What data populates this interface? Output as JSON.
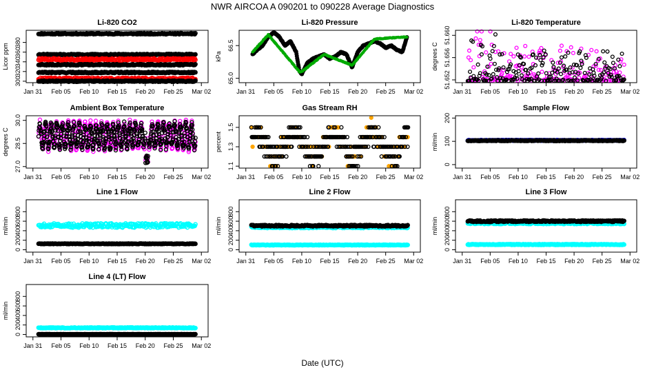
{
  "title": "NWR   AIRCOA A   090201 to 090228   Average Diagnostics",
  "xlabel": "Date (UTC)",
  "x_ticks": [
    "Jan 31",
    "Feb 05",
    "Feb 10",
    "Feb 15",
    "Feb 20",
    "Feb 25",
    "Mar 02"
  ],
  "x_tick_days": [
    0,
    5,
    10,
    15,
    20,
    25,
    30
  ],
  "data_day_range": [
    1,
    29
  ],
  "colors": {
    "black": "#000000",
    "red": "#ff0000",
    "magenta": "#ff00ff",
    "cyan": "#00ffff",
    "orange": "#ffa500",
    "green": "#00aa00",
    "blue": "#0000ff"
  },
  "chart_data": [
    {
      "id": "li820-co2",
      "type": "scatter",
      "title": "Li-820 CO2",
      "ylabel": "Licor ppm",
      "ylim": [
        297,
        405
      ],
      "yticks": [
        "300",
        "320",
        "340",
        "360",
        "380"
      ],
      "ytick_values": [
        300,
        320,
        340,
        360,
        380
      ],
      "series": [
        {
          "name": "level-398",
          "color": "black",
          "kind": "flat",
          "level": 398,
          "noise": 1.2
        },
        {
          "name": "level-355",
          "color": "black",
          "kind": "flat",
          "level": 355,
          "noise": 1.2
        },
        {
          "name": "level-345",
          "color": "red",
          "kind": "flat",
          "level": 345,
          "noise": 2.2
        },
        {
          "name": "level-334",
          "color": "black",
          "kind": "flat",
          "level": 334,
          "noise": 1.2
        },
        {
          "name": "level-318",
          "color": "black",
          "kind": "flat",
          "level": 318,
          "noise": 1.2
        },
        {
          "name": "level-305",
          "color": "red",
          "kind": "flat",
          "level": 305,
          "noise": 2.2
        },
        {
          "name": "level-300",
          "color": "black",
          "kind": "flat",
          "level": 300,
          "noise": 1.2
        }
      ]
    },
    {
      "id": "li820-pressure",
      "type": "line",
      "title": "Li-820 Pressure",
      "ylabel": "kPa",
      "ylim": [
        64.8,
        67.2
      ],
      "yticks": [
        "65.0",
        "66.5"
      ],
      "ytick_values": [
        65.0,
        66.5
      ],
      "series": [
        {
          "name": "pressure",
          "color": "black",
          "kind": "profile",
          "x": [
            1.2,
            2,
            3,
            4,
            5,
            6,
            7,
            8,
            9,
            9.6,
            10,
            11,
            12,
            13,
            14,
            15,
            16,
            17,
            18,
            19,
            20,
            21,
            22,
            23,
            24,
            25,
            26,
            27,
            28,
            28.8
          ],
          "y": [
            66.1,
            66.3,
            66.5,
            66.9,
            67.1,
            66.9,
            66.5,
            66.7,
            66.2,
            65.3,
            65.2,
            65.7,
            65.9,
            66.0,
            66.1,
            65.9,
            66.0,
            66.2,
            66.1,
            65.5,
            66.2,
            66.5,
            66.6,
            66.7,
            66.6,
            66.4,
            66.5,
            66.3,
            66.2,
            66.9
          ]
        },
        {
          "name": "pressure-hi",
          "color": "green",
          "kind": "profile",
          "x": [
            1.2,
            4,
            9.6,
            10,
            14,
            19,
            23,
            28.8
          ],
          "y": [
            66.2,
            67.0,
            65.3,
            65.3,
            66.1,
            65.6,
            66.8,
            66.9
          ]
        }
      ]
    },
    {
      "id": "li820-temperature",
      "type": "scatter",
      "title": "Li-820 Temperature",
      "ylabel": "degrees C",
      "ylim": [
        51.6515,
        51.6609
      ],
      "yticks": [
        "51.652",
        "51.656",
        "51.660"
      ],
      "ytick_values": [
        51.652,
        51.656,
        51.66
      ],
      "series": [
        {
          "name": "temperature-magenta",
          "color": "magenta",
          "kind": "spiky",
          "base": 51.6518,
          "spread": 0.0075
        },
        {
          "name": "temperature-black",
          "color": "black",
          "kind": "spiky",
          "base": 51.6518,
          "spread": 0.0065
        }
      ]
    },
    {
      "id": "ambient-box-temperature",
      "type": "scatter",
      "title": "Ambient Box Temperature",
      "ylabel": "degrees C",
      "ylim": [
        26.9,
        30.3
      ],
      "yticks": [
        "27.0",
        "28.5",
        "30.0"
      ],
      "ytick_values": [
        27.0,
        28.5,
        30.0
      ],
      "series": [
        {
          "name": "box-temp-magenta",
          "color": "magenta",
          "kind": "cyclic",
          "level": 29.0,
          "amp": 0.8
        },
        {
          "name": "box-temp-black",
          "color": "black",
          "kind": "cyclic",
          "level": 29.0,
          "amp": 0.7
        }
      ]
    },
    {
      "id": "gas-stream-rh",
      "type": "scatter",
      "title": "Gas Stream RH",
      "ylabel": "percent",
      "ylim": [
        1.08,
        1.62
      ],
      "yticks": [
        "1.1",
        "1.3",
        "1.5"
      ],
      "ytick_values": [
        1.1,
        1.3,
        1.5
      ],
      "series": [
        {
          "name": "rh-orange",
          "color": "orange",
          "kind": "quantized",
          "levels": [
            1.1,
            1.2,
            1.3,
            1.4,
            1.5,
            1.6
          ]
        },
        {
          "name": "rh-black",
          "color": "black",
          "kind": "quantized",
          "levels": [
            1.1,
            1.2,
            1.3,
            1.4,
            1.5,
            1.6
          ]
        }
      ]
    },
    {
      "id": "sample-flow",
      "type": "scatter",
      "title": "Sample Flow",
      "ylabel": "ml/min",
      "ylim": [
        -15,
        210
      ],
      "yticks": [
        "0",
        "100",
        "200"
      ],
      "ytick_values": [
        0,
        100,
        200
      ],
      "series": [
        {
          "name": "sample-blue",
          "color": "blue",
          "kind": "flat",
          "level": 104,
          "noise": 1.5
        },
        {
          "name": "sample-black",
          "color": "black",
          "kind": "flat",
          "level": 103,
          "noise": 1.5
        }
      ]
    },
    {
      "id": "line-1-flow",
      "type": "scatter",
      "title": "Line 1 Flow",
      "ylabel": "ml/min",
      "ylim": [
        -50,
        1050
      ],
      "yticks": [
        "0",
        "200",
        "400",
        "600",
        "800"
      ],
      "ytick_values": [
        0,
        200,
        400,
        600,
        800
      ],
      "series": [
        {
          "name": "line1-cyan",
          "color": "cyan",
          "kind": "flat",
          "level": 510,
          "noise": 45
        },
        {
          "name": "line1-black",
          "color": "black",
          "kind": "flat",
          "level": 125,
          "noise": 6
        }
      ]
    },
    {
      "id": "line-2-flow",
      "type": "scatter",
      "title": "Line 2 Flow",
      "ylabel": "ml/min",
      "ylim": [
        -50,
        1050
      ],
      "yticks": [
        "0",
        "200",
        "400",
        "600",
        "800"
      ],
      "ytick_values": [
        0,
        200,
        400,
        600,
        800
      ],
      "series": [
        {
          "name": "line2-cyan-low",
          "color": "cyan",
          "kind": "flat",
          "level": 100,
          "noise": 6
        },
        {
          "name": "line2-cyan-high",
          "color": "cyan",
          "kind": "flat",
          "level": 470,
          "noise": 15
        },
        {
          "name": "line2-black",
          "color": "black",
          "kind": "flat",
          "level": 505,
          "noise": 15
        }
      ]
    },
    {
      "id": "line-3-flow",
      "type": "scatter",
      "title": "Line 3 Flow",
      "ylabel": "ml/min",
      "ylim": [
        -50,
        1050
      ],
      "yticks": [
        "0",
        "200",
        "400",
        "600",
        "800"
      ],
      "ytick_values": [
        0,
        200,
        400,
        600,
        800
      ],
      "series": [
        {
          "name": "line3-cyan-low",
          "color": "cyan",
          "kind": "flat",
          "level": 110,
          "noise": 8
        },
        {
          "name": "line3-cyan-high",
          "color": "cyan",
          "kind": "flat",
          "level": 560,
          "noise": 20
        },
        {
          "name": "line3-black",
          "color": "black",
          "kind": "flat",
          "level": 600,
          "noise": 15
        }
      ]
    },
    {
      "id": "line-4-lt-flow",
      "type": "scatter",
      "title": "Line 4 (LT) Flow",
      "ylabel": "ml/min",
      "ylim": [
        -50,
        1050
      ],
      "yticks": [
        "0",
        "200",
        "400",
        "600",
        "800"
      ],
      "ytick_values": [
        0,
        200,
        400,
        600,
        800
      ],
      "series": [
        {
          "name": "line4-cyan",
          "color": "cyan",
          "kind": "flat",
          "level": 140,
          "noise": 8
        },
        {
          "name": "line4-black",
          "color": "black",
          "kind": "flat",
          "level": 5,
          "noise": 2
        }
      ]
    }
  ]
}
